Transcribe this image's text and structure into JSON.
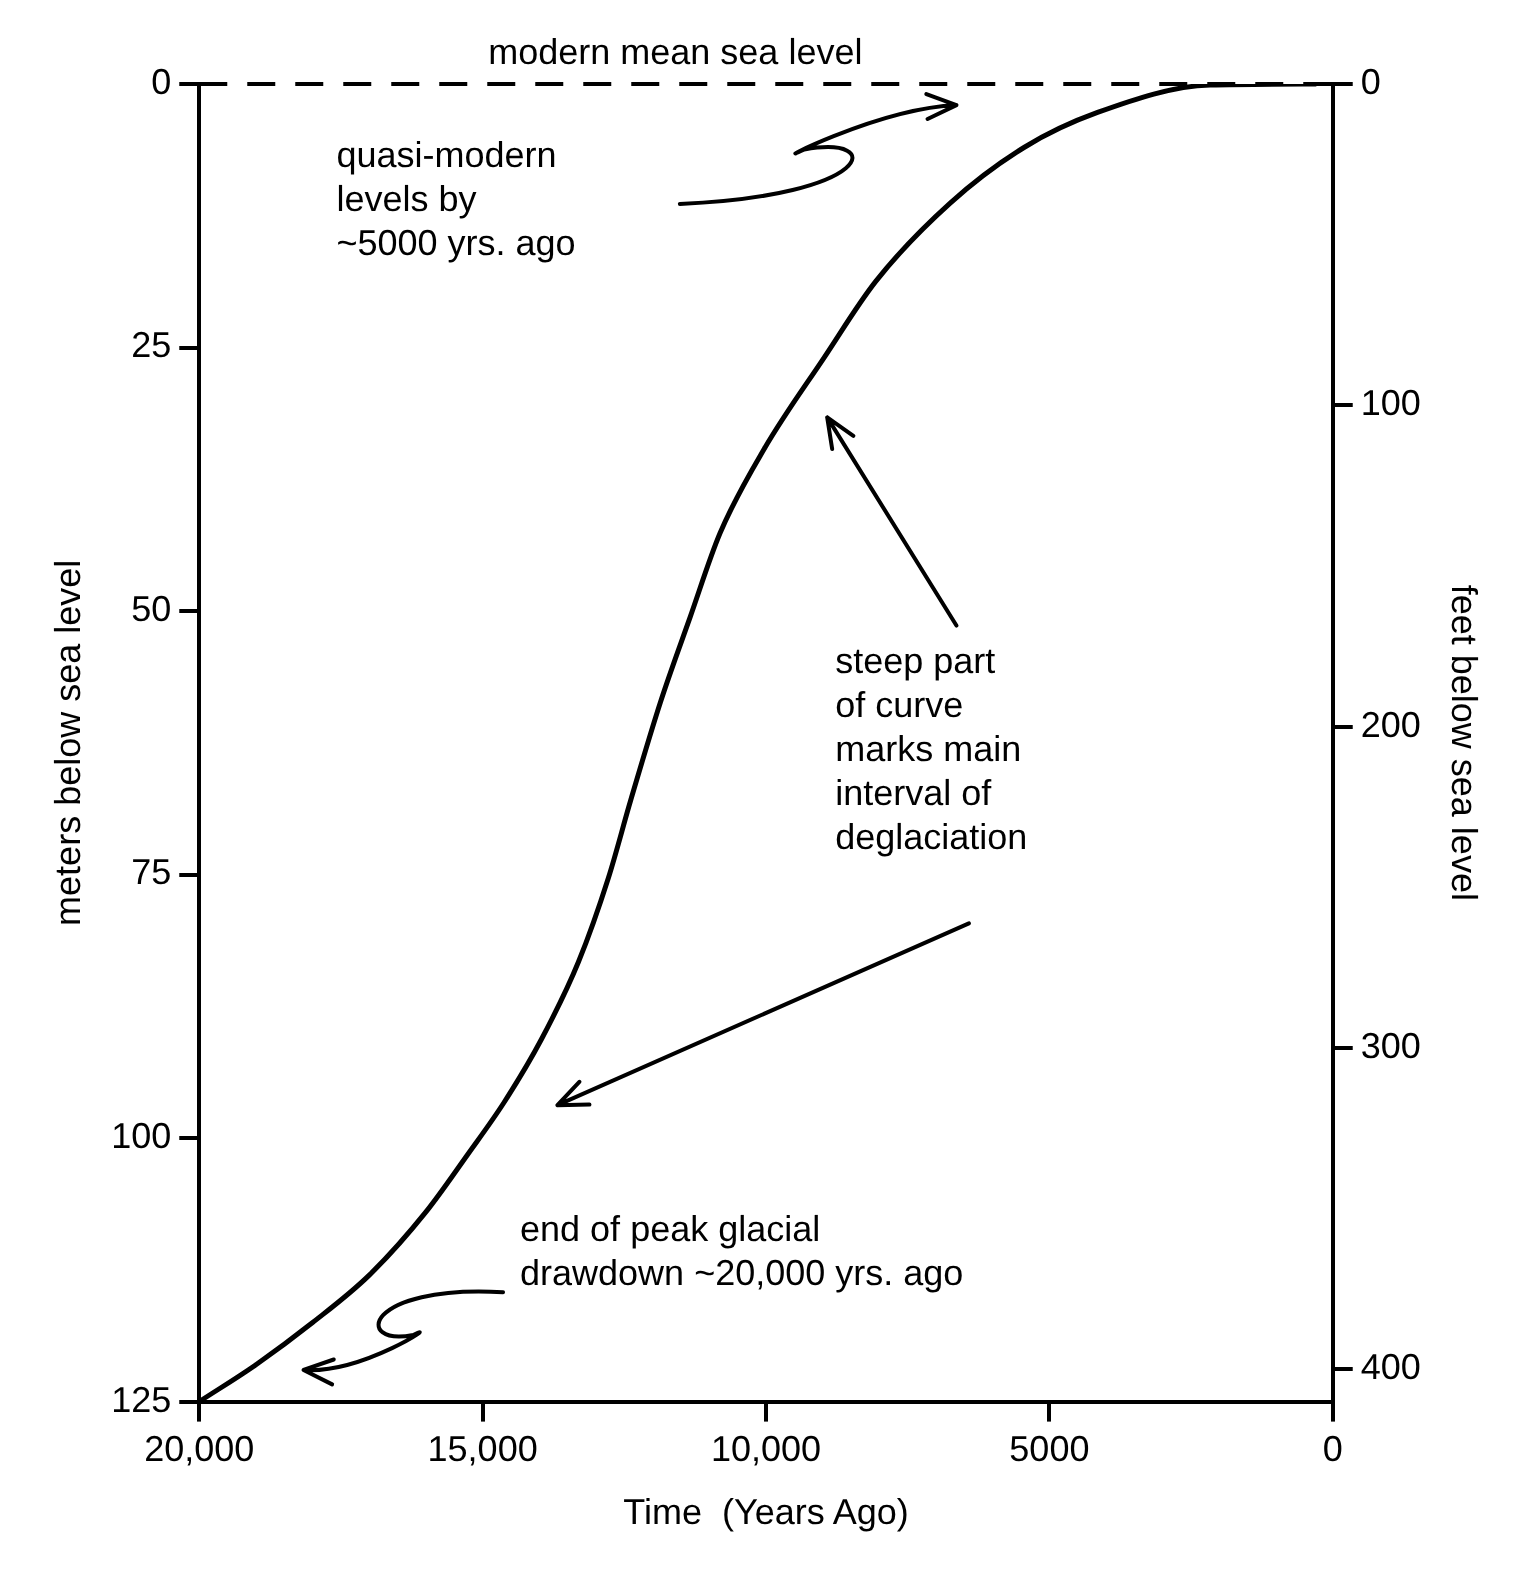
{
  "chart_data": {
    "type": "line",
    "xlabel": "Time  (Years Ago)",
    "ylabel": "meters below sea level",
    "y2label": "feet below sea level",
    "xlim": [
      20000,
      0
    ],
    "xticks": [
      {
        "value": 20000,
        "label": "20,000"
      },
      {
        "value": 15000,
        "label": "15,000"
      },
      {
        "value": 10000,
        "label": "10,000"
      },
      5000,
      0
    ],
    "ylim": [
      125,
      0
    ],
    "yticks": [
      0,
      25,
      50,
      75,
      100,
      125
    ],
    "y2lim": [
      410,
      0
    ],
    "y2ticks": [
      0,
      100,
      200,
      300,
      400
    ],
    "grid": false,
    "legend": false,
    "marker": "none",
    "line_style": "solid",
    "series": [
      {
        "color": "#000000",
        "x": [
          20000,
          19000,
          18000,
          17000,
          16000,
          15270,
          14620,
          13960,
          13310,
          12780,
          12390,
          11860,
          11340,
          10810,
          10030,
          8980,
          8060,
          6750,
          5440,
          4150,
          2165,
          300
        ],
        "values": [
          125,
          121.5,
          117.5,
          113,
          107,
          101.6,
          96.6,
          90.6,
          83.3,
          75.3,
          68,
          58.6,
          50.6,
          42.6,
          34.6,
          26,
          18.7,
          11.3,
          6,
          2.7,
          0.1,
          0
        ]
      }
    ],
    "ref_lines": [
      {
        "axis": "y",
        "value": 0,
        "label": "modern mean sea level",
        "line_style": "dashed",
        "color": "#000000"
      }
    ],
    "annotations": [
      "quasi-modern\nlevels by\n~5000 yrs. ago",
      "steep part\nof curve\nmarks main\ninterval of\ndeglaciation",
      "end of peak glacial\ndrawdown ~20,000 yrs. ago"
    ]
  }
}
